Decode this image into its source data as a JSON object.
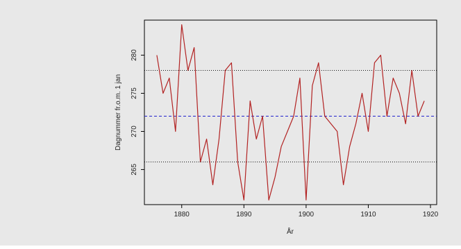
{
  "chart_data": {
    "type": "line",
    "xlabel": "År",
    "ylabel": "Dagnummer fr.o.m. 1 jan",
    "xlim": [
      1874,
      1921
    ],
    "ylim": [
      260.4,
      284.6
    ],
    "x_ticks": [
      1880,
      1890,
      1900,
      1910,
      1920
    ],
    "y_ticks": [
      265,
      270,
      275,
      280
    ],
    "grid": false,
    "colors": {
      "plot_background": "#e8e8e8",
      "series": "#b22222",
      "mean_line": "#2222cc",
      "bound_lines": "#111111"
    },
    "reference_lines": [
      {
        "y": 278,
        "style": "dotted",
        "color": "#111111"
      },
      {
        "y": 272,
        "style": "dashed",
        "color": "#2222cc"
      },
      {
        "y": 266,
        "style": "dotted",
        "color": "#111111"
      }
    ],
    "series": [
      {
        "x": [
          1876,
          1877,
          1878,
          1879,
          1880,
          1881,
          1882,
          1883,
          1884,
          1885,
          1886,
          1887,
          1888,
          1889,
          1890,
          1891,
          1892,
          1893,
          1894,
          1895,
          1896,
          1897,
          1898,
          1899,
          1900,
          1901,
          1902,
          1903,
          1904,
          1905,
          1906,
          1907,
          1908,
          1909,
          1910,
          1911,
          1912,
          1913,
          1914,
          1915,
          1916,
          1917,
          1918,
          1919
        ],
        "values": [
          280,
          275,
          277,
          270,
          284,
          278,
          281,
          266,
          269,
          263,
          269,
          278,
          279,
          266,
          261,
          274,
          269,
          272,
          261,
          264,
          268,
          270,
          272,
          277,
          261,
          276,
          279,
          272,
          271,
          270,
          263,
          268,
          271,
          275,
          270,
          279,
          280,
          272,
          277,
          275,
          271,
          278,
          272,
          274
        ]
      }
    ]
  }
}
